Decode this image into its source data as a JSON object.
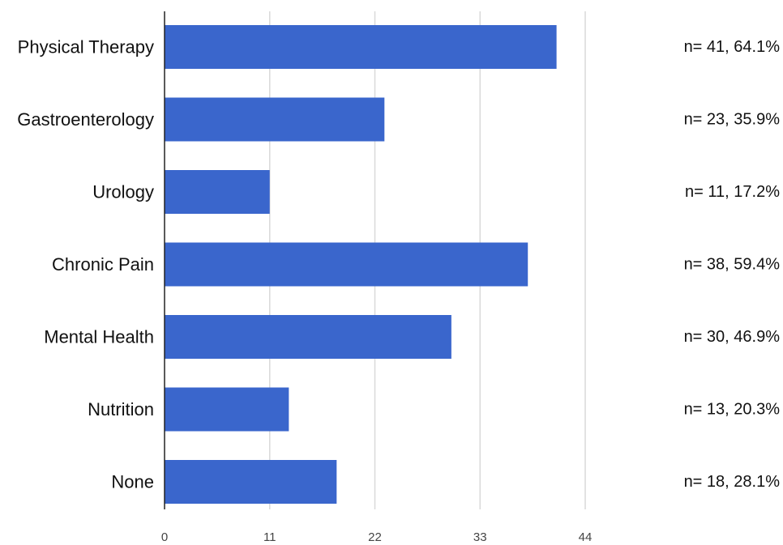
{
  "chart_data": {
    "type": "bar",
    "orientation": "horizontal",
    "categories": [
      "Physical Therapy",
      "Gastroenterology",
      "Urology",
      "Chronic Pain",
      "Mental Health",
      "Nutrition",
      "None"
    ],
    "values": [
      41,
      23,
      11,
      38,
      30,
      13,
      18
    ],
    "data_labels": [
      "n= 41, 64.1%",
      "n= 23, 35.9%",
      "n= 11, 17.2%",
      "n= 38, 59.4%",
      "n= 30, 46.9%",
      "n= 13, 20.3%",
      "n= 18, 28.1%"
    ],
    "x_ticks": [
      "0",
      "11",
      "22",
      "33",
      "44"
    ],
    "x_tick_values": [
      0,
      11,
      22,
      33,
      44
    ],
    "xlim": [
      0,
      44
    ],
    "grid": true,
    "legend": "none",
    "bar_color": "#3a66cc",
    "title": "",
    "xlabel": "",
    "ylabel": ""
  }
}
